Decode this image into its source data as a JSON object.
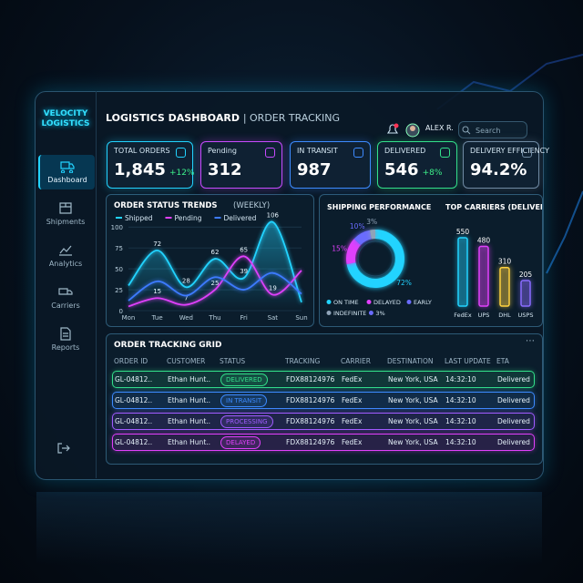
{
  "sidebar": {
    "brand": "VELOCITY LOGISTICS",
    "nav": [
      "Dashboard",
      "Shipments",
      "Analytics",
      "Carriers",
      "Reports"
    ]
  },
  "header": {
    "title": "LOGISTICS DASHBOARD",
    "subtitle": "| ORDER TRACKING",
    "user": "ALEX R.",
    "search": "Search"
  },
  "kpis": [
    {
      "label": "TOTAL ORDERS",
      "value": "1,845",
      "change": "+12%"
    },
    {
      "label": "Pending",
      "value": "312"
    },
    {
      "label": "IN TRANSIT",
      "value": "987"
    },
    {
      "label": "DELIVERED",
      "value": "546",
      "change": "+8%"
    },
    {
      "label": "DELIVERY EFFICIENCY",
      "value": "94.2%"
    }
  ],
  "chart_data": [
    {
      "type": "line",
      "title": "ORDER STATUS TRENDS",
      "subtitle": "(WEEKLY)",
      "categories": [
        "Mon",
        "Tue",
        "Wed",
        "Thu",
        "Fri",
        "Sat",
        "Sun"
      ],
      "series": [
        {
          "name": "Shipped",
          "color": "#22d3ff",
          "values": [
            30,
            72,
            28,
            62,
            39,
            106,
            10
          ],
          "value_labels": [
            null,
            "72",
            "28",
            "62",
            "39",
            "106",
            null
          ]
        },
        {
          "name": "Pending",
          "color": "#e040fb",
          "values": [
            5,
            15,
            7,
            25,
            65,
            19,
            48
          ],
          "value_labels": [
            null,
            "15",
            "7",
            "25",
            "65",
            "19",
            null
          ]
        },
        {
          "name": "Delivered",
          "color": "#3d7bff",
          "values": [
            12,
            35,
            18,
            40,
            25,
            45,
            20
          ]
        }
      ],
      "ylim": [
        0,
        110
      ],
      "yticks": [
        0,
        25,
        50,
        75,
        100
      ],
      "grid": true
    },
    {
      "type": "pie",
      "title": "SHIPPING PERFORMANCE",
      "categories": [
        "ON TIME",
        "DELAYED",
        "EARLY",
        "INDEFINITE"
      ],
      "values": [
        72,
        15,
        10,
        3
      ],
      "value_labels": [
        "72%",
        "15%",
        "10%",
        "3%"
      ],
      "colors": [
        "#22d3ff",
        "#e040fb",
        "#6a6cff",
        "#8fa3b8"
      ]
    },
    {
      "type": "bar",
      "title": "TOP CARRIERS (DELIVERIES)",
      "categories": [
        "FedEx",
        "UPS",
        "DHL",
        "USPS"
      ],
      "values": [
        550,
        480,
        310,
        205
      ],
      "colors": [
        "#22d3ff",
        "#e040fb",
        "#ffd23f",
        "#8a6cff"
      ]
    }
  ],
  "table": {
    "title": "ORDER TRACKING GRID",
    "columns": [
      "ORDER ID",
      "CUSTOMER",
      "STATUS",
      "TRACKING",
      "CARRIER",
      "DESTINATION",
      "LAST UPDATE",
      "ETA"
    ],
    "rows": [
      [
        "GL-04812..",
        "Ethan Hunt..",
        "DELIVERED",
        "FDX88124976",
        "FedEx",
        "New York, USA",
        "14:32:10",
        "Delivered"
      ],
      [
        "GL-04812..",
        "Ethan Hunt..",
        "IN TRANSIT",
        "FDX88124976",
        "FedEx",
        "New York, USA",
        "14:32:10",
        "Delivered"
      ],
      [
        "GL-04812..",
        "Ethan Hunt..",
        "PROCESSING",
        "FDX88124976",
        "FedEx",
        "New York, USA",
        "14:32:10",
        "Delivered"
      ],
      [
        "GL-04812..",
        "Ethan Hunt..",
        "DELAYED",
        "FDX88124976",
        "FedEx",
        "New York, USA",
        "14:32:10",
        "Delivered"
      ]
    ]
  }
}
